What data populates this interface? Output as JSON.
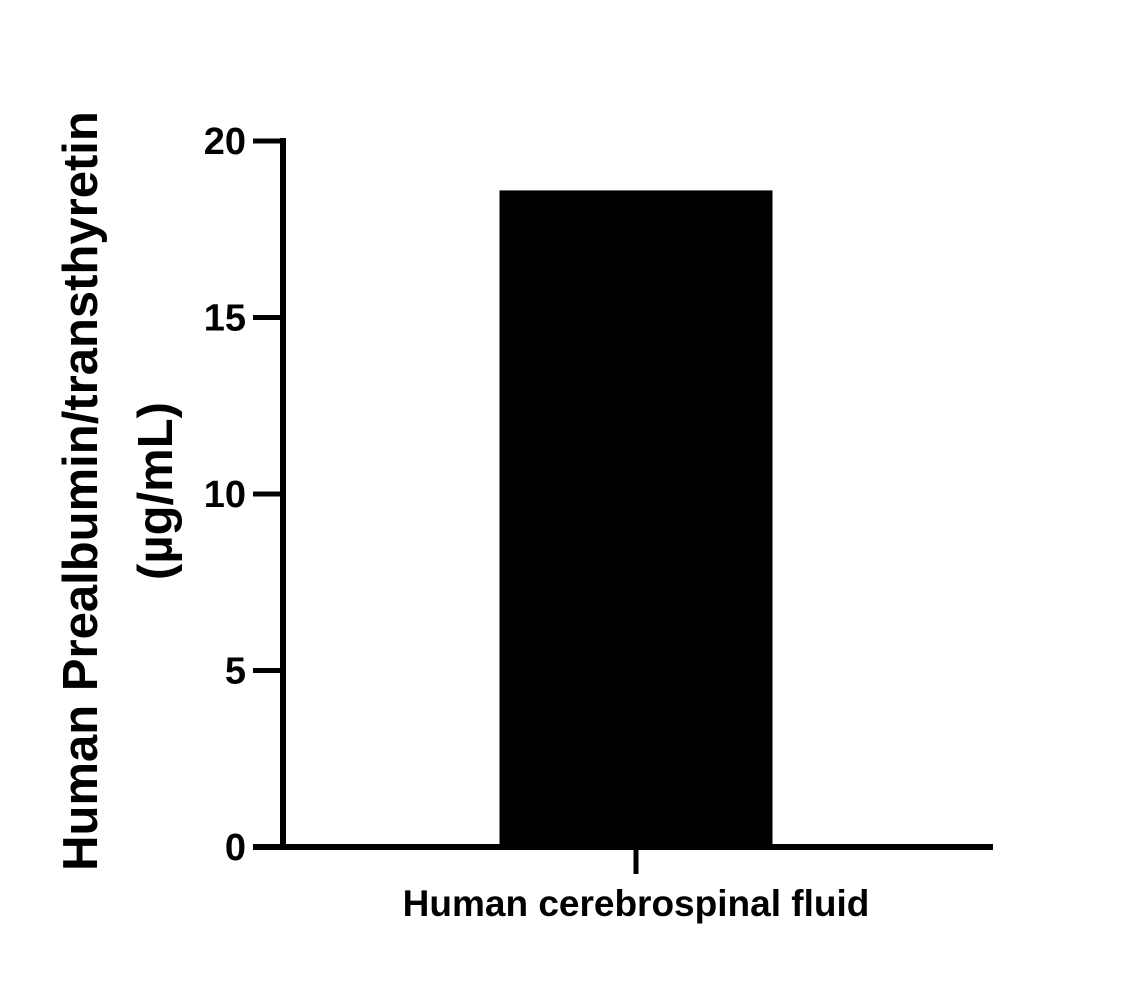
{
  "chart_data": {
    "type": "bar",
    "categories": [
      "Human cerebrospinal fluid"
    ],
    "values": [
      18.6
    ],
    "title": "",
    "xlabel": "",
    "ylabel_lines": [
      "Human Prealbumin/transthyretin",
      "(µg/mL)"
    ],
    "ylim": [
      0,
      20
    ],
    "yticks": [
      0,
      5,
      10,
      15,
      20
    ],
    "ytick_labels": [
      "0",
      "5",
      "10",
      "15",
      "20"
    ],
    "grid": false,
    "legend": "none",
    "colors": {
      "bar": "#000000",
      "axis": "#000000",
      "background": "#ffffff"
    }
  }
}
